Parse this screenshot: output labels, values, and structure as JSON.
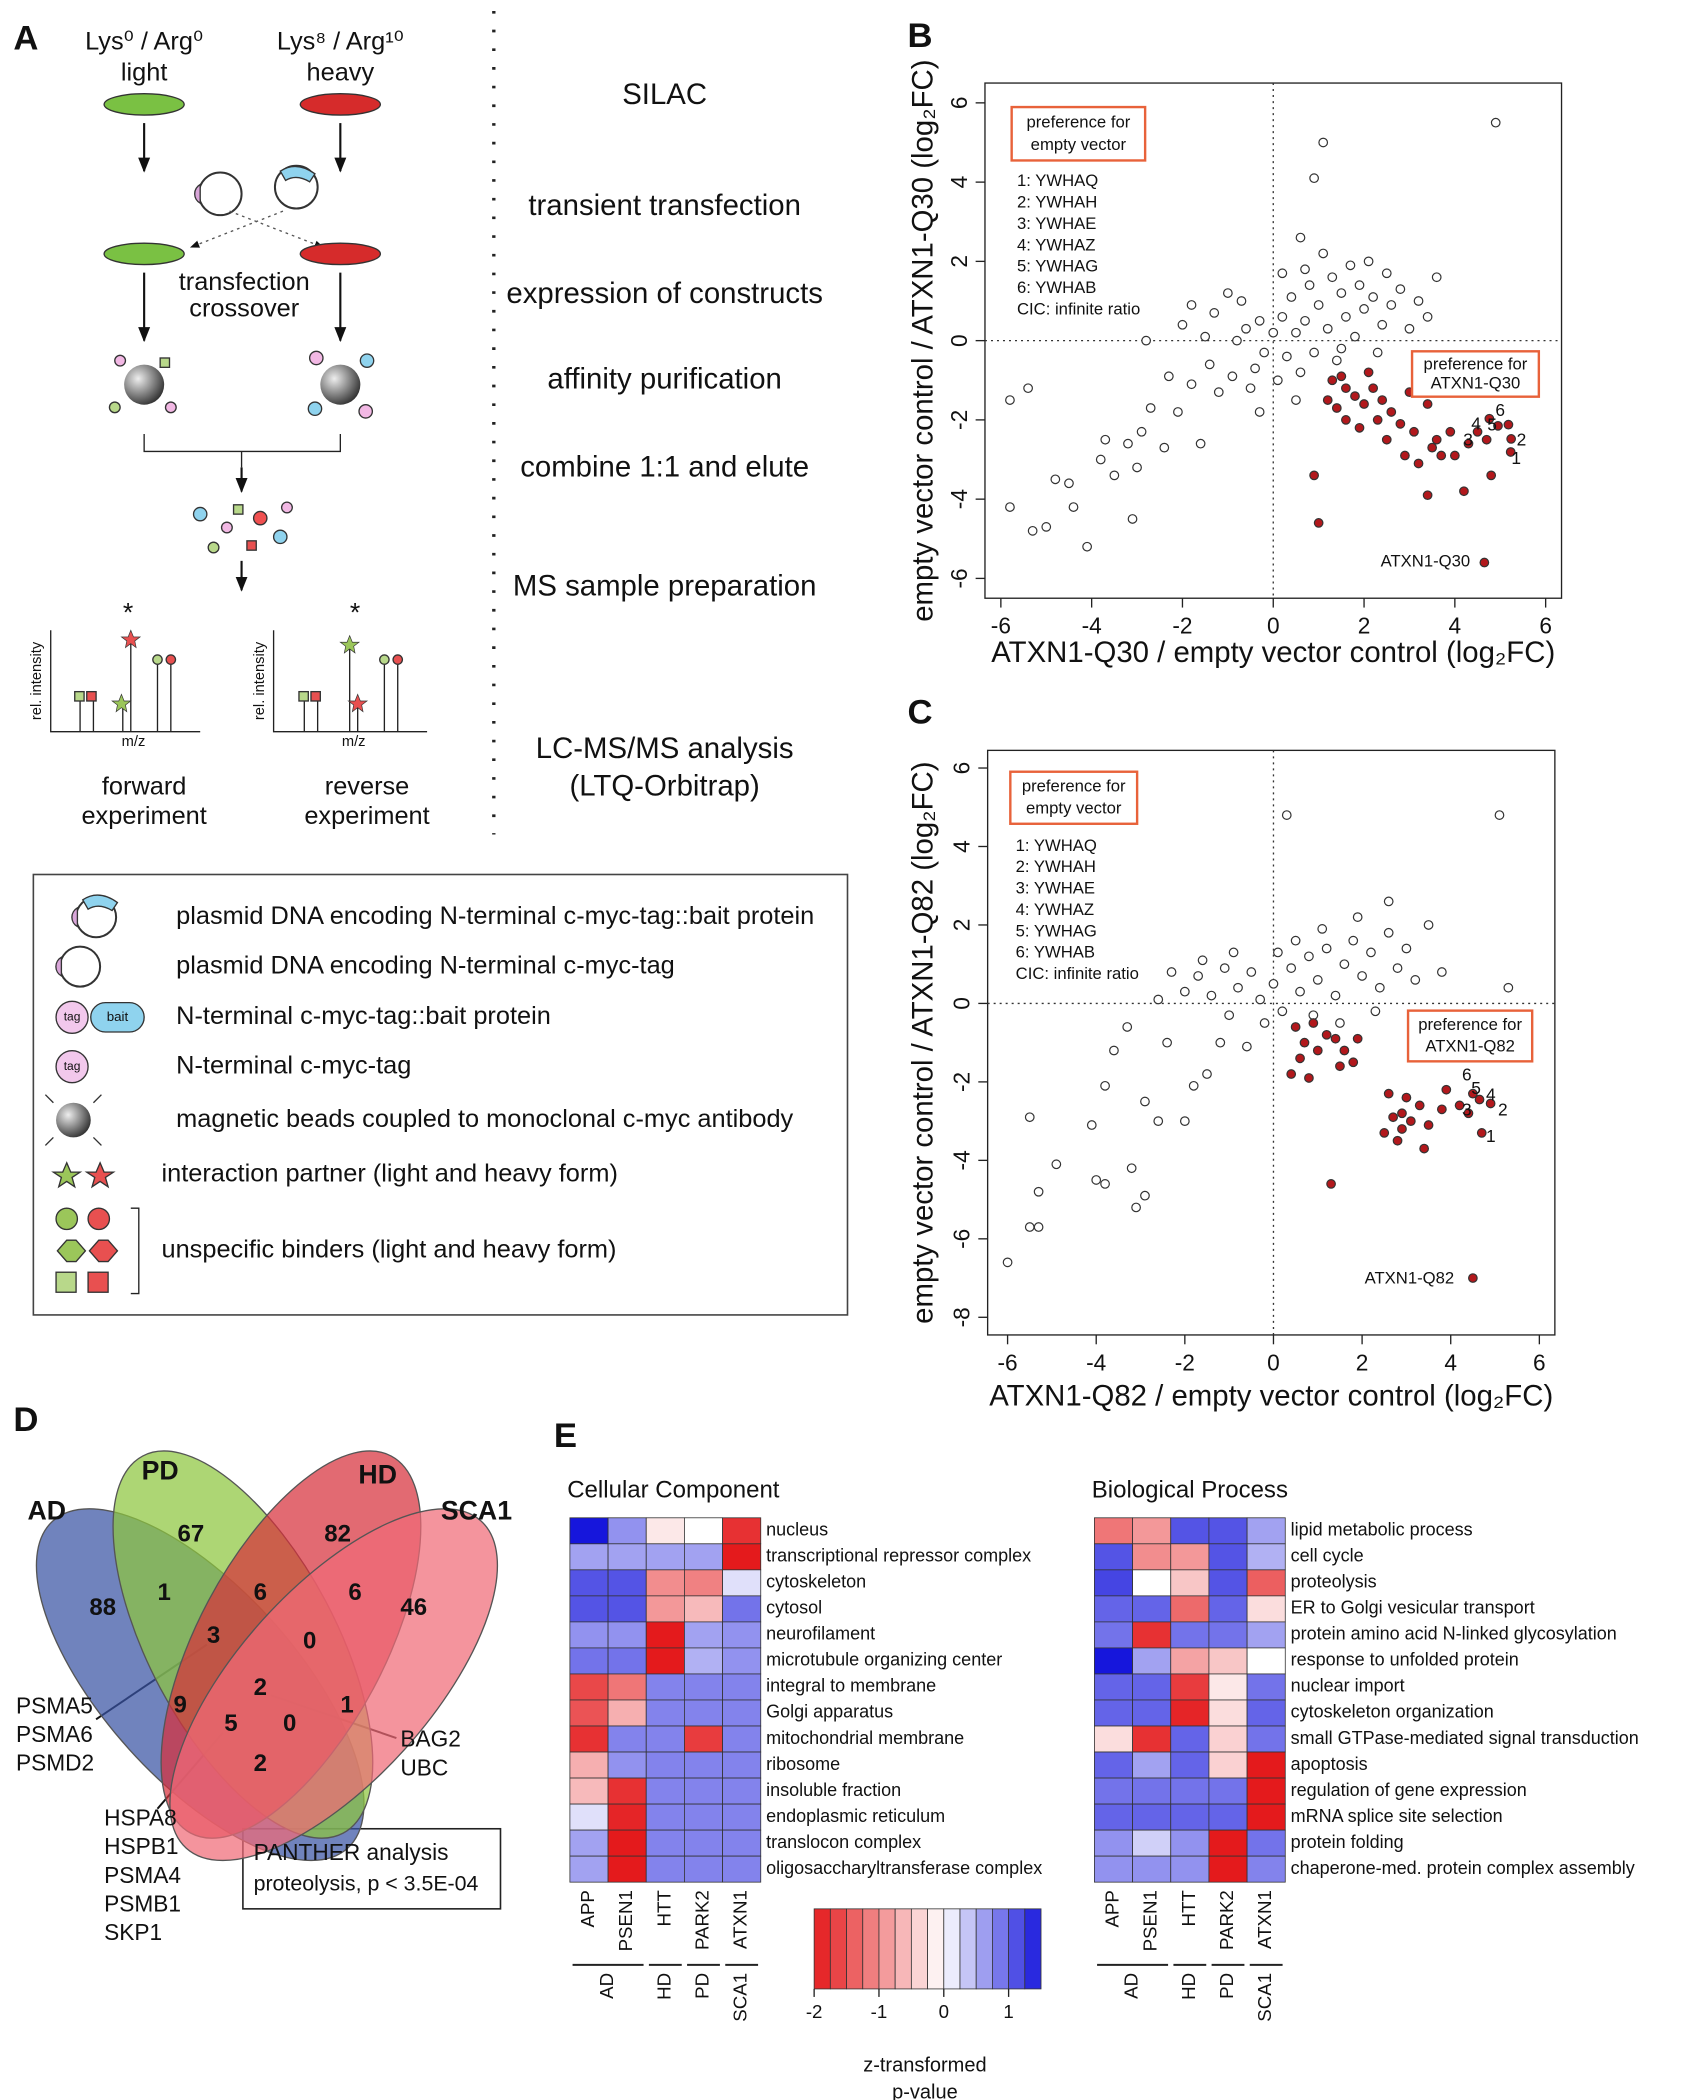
{
  "panel_a": {
    "label": "A",
    "light_label": "Lys⁰ / Arg⁰",
    "light": "light",
    "heavy_label": "Lys⁸ / Arg¹⁰",
    "heavy": "heavy",
    "crossover": [
      "transfection",
      "crossover"
    ],
    "y_axis": "rel. intensity",
    "x_axis": "m/z",
    "marker": "*",
    "forward": [
      "forward",
      "experiment"
    ],
    "reverse": [
      "reverse",
      "experiment"
    ],
    "steps": [
      "SILAC",
      "transient transfection",
      "expression of constructs",
      "affinity purification",
      "combine 1:1 and elute",
      "MS sample preparation",
      "LC-MS/MS analysis",
      "(LTQ-Orbitrap)"
    ],
    "legend": [
      "plasmid DNA encoding N-terminal c-myc-tag::bait protein",
      "plasmid DNA encoding N-terminal c-myc-tag",
      "N-terminal c-myc-tag::bait protein",
      "N-terminal c-myc-tag",
      "magnetic beads coupled to monoclonal c-myc antibody",
      "interaction partner (light and heavy form)",
      "unspecific binders (light and heavy form)"
    ],
    "tag": "tag",
    "bait": "bait"
  },
  "chart_data": [
    {
      "type": "scatter",
      "panel": "B",
      "x_label": "ATXN1-Q30 / empty vector control (log₂FC)",
      "y_label": "empty vector control / ATXN1-Q30 (log₂FC)",
      "xlim": [
        -6.35,
        6.35
      ],
      "ylim": [
        -6.5,
        6.5
      ],
      "xticks": [
        -6,
        -4,
        -2,
        0,
        2,
        4,
        6
      ],
      "yticks": [
        -6,
        -4,
        -2,
        0,
        2,
        4,
        6
      ],
      "left_box": [
        "preference for",
        "empty vector"
      ],
      "right_box": [
        "preference for",
        "ATXN1-Q30"
      ],
      "key": [
        "1: YWHAQ",
        "2: YWHAH",
        "3: YWHAE",
        "4: YWHAZ",
        "5: YWHAG",
        "6: YWHAB",
        "CIC: infinite ratio"
      ],
      "point_labels": [
        "6",
        "4",
        "5",
        "3",
        "2",
        "1"
      ],
      "bait_label": "ATXN1-Q30",
      "series": [
        {
          "color": "#ffffff",
          "x": [
            1.1,
            4.9,
            0.9,
            0.6,
            -5.8,
            -5.4,
            -5.8,
            -5.3,
            -5.0,
            -4.8,
            -4.5,
            -4.4,
            -4.1,
            -3.7,
            -3.8,
            -3.5,
            -3.2,
            -3.0,
            -3.1,
            -2.9,
            -2.7,
            -2.4,
            -2.1,
            -1.8,
            -1.6,
            -1.4,
            -1.2,
            -0.9,
            -0.5,
            -0.3,
            -2.8,
            -2.0,
            -1.8,
            -1.3,
            -1.0,
            -0.7,
            -0.6,
            -0.3,
            -0.2,
            0.0,
            0.2,
            0.3,
            0.4,
            0.5,
            0.6,
            0.7,
            0.8,
            0.9,
            1.0,
            1.2,
            1.3,
            1.4,
            1.5,
            1.6,
            1.7,
            1.8,
            1.9,
            2.0,
            2.1,
            2.2,
            2.4,
            2.5,
            2.6,
            2.8,
            3.0,
            3.2,
            3.3,
            3.6,
            3.4,
            -0.4,
            0.1,
            -1.5,
            -0.8,
            0.2,
            1.1,
            0.5,
            -2.3,
            2.3,
            1.5,
            0.7
          ],
          "values": [
            5.0,
            5.5,
            4.1,
            2.6,
            -1.5,
            -1.2,
            -4.2,
            -4.8,
            -4.7,
            -3.5,
            -3.6,
            -4.2,
            -5.2,
            -2.5,
            -3.0,
            -3.4,
            -2.6,
            -3.2,
            -4.5,
            -2.3,
            -1.7,
            -2.7,
            -1.8,
            -1.1,
            -2.6,
            -0.6,
            -1.3,
            -0.9,
            -1.2,
            -1.8,
            0.0,
            0.4,
            0.9,
            0.7,
            1.2,
            1.0,
            0.3,
            0.5,
            -0.3,
            0.2,
            0.6,
            -0.4,
            1.1,
            0.2,
            -0.8,
            0.5,
            1.4,
            -0.3,
            0.9,
            0.3,
            1.6,
            -0.5,
            1.2,
            0.6,
            1.9,
            0.1,
            1.4,
            0.8,
            2.0,
            1.1,
            0.4,
            1.7,
            0.9,
            1.3,
            0.3,
            1.0,
            -0.5,
            1.6,
            0.6,
            -0.7,
            -1.0,
            0.1,
            0.0,
            1.7,
            2.2,
            -1.5,
            -0.9,
            -0.3,
            -0.2,
            1.8
          ]
        },
        {
          "color": "#b2181c",
          "x": [
            1.3,
            1.5,
            1.2,
            1.4,
            1.8,
            2.0,
            1.6,
            1.9,
            2.2,
            2.4,
            2.3,
            2.6,
            2.8,
            2.5,
            3.0,
            3.1,
            2.9,
            3.4,
            3.5,
            3.6,
            3.9,
            4.0,
            4.3,
            4.5,
            3.2,
            3.7,
            4.8,
            4.2,
            3.4,
            0.9,
            1.0,
            1.6,
            2.1,
            4.76,
            4.95,
            5.18,
            5.24,
            5.23,
            4.7,
            4.65
          ],
          "values": [
            -1.0,
            -0.9,
            -1.5,
            -1.7,
            -1.4,
            -1.6,
            -2.0,
            -2.2,
            -1.2,
            -1.5,
            -2.0,
            -1.8,
            -2.1,
            -2.5,
            -1.3,
            -2.3,
            -2.9,
            -1.6,
            -2.7,
            -2.5,
            -2.3,
            -2.9,
            -2.6,
            -2.3,
            -3.1,
            -2.9,
            -3.4,
            -3.8,
            -3.9,
            -3.4,
            -4.6,
            -1.2,
            -0.8,
            -1.97,
            -2.15,
            -2.12,
            -2.48,
            -2.81,
            -2.5,
            -5.6
          ]
        }
      ]
    },
    {
      "type": "scatter",
      "panel": "C",
      "x_label": "ATXN1-Q82 / empty vector control (log₂FC)",
      "y_label": "empty vector control / ATXN1-Q82 (log₂FC)",
      "xlim": [
        -6.45,
        6.35
      ],
      "ylim": [
        -8.45,
        6.45
      ],
      "xticks": [
        -6,
        -4,
        -2,
        0,
        2,
        4,
        6
      ],
      "yticks": [
        -8,
        -6,
        -4,
        -2,
        0,
        2,
        4,
        6
      ],
      "left_box": [
        "preference for",
        "empty vector"
      ],
      "right_box": [
        "preference for",
        "ATXN1-Q82"
      ],
      "key": [
        "1: YWHAQ",
        "2: YWHAH",
        "3: YWHAE",
        "4: YWHAZ",
        "5: YWHAG",
        "6: YWHAB",
        "CIC: infinite ratio"
      ],
      "point_labels": [
        "6",
        "5",
        "4",
        "3",
        "2",
        "1"
      ],
      "bait_label": "ATXN1-Q82",
      "series": [
        {
          "color": "#ffffff",
          "x": [
            0.3,
            5.1,
            5.3,
            -6.0,
            -5.5,
            -5.3,
            -5.5,
            -5.3,
            -4.9,
            -4.1,
            -4.0,
            -3.8,
            -3.8,
            -3.6,
            -3.3,
            -3.1,
            -2.9,
            -3.2,
            -2.9,
            -2.6,
            -2.4,
            -2.0,
            -1.8,
            -1.5,
            -1.2,
            -0.6,
            -2.3,
            -2.0,
            -1.7,
            -1.4,
            -1.1,
            -0.8,
            -0.5,
            -0.3,
            0.0,
            0.2,
            0.4,
            0.6,
            0.8,
            1.0,
            1.2,
            1.4,
            1.6,
            1.8,
            2.0,
            2.2,
            2.4,
            2.6,
            2.8,
            3.0,
            3.2,
            3.5,
            2.6,
            1.9,
            0.9,
            -0.2,
            -1.0,
            0.5,
            1.5,
            3.8,
            -2.6,
            0.1,
            -1.6,
            2.3,
            1.1,
            -0.9
          ],
          "values": [
            4.8,
            4.8,
            0.4,
            -6.6,
            -5.7,
            -5.7,
            -2.9,
            -4.8,
            -4.1,
            -3.1,
            -4.5,
            -4.6,
            -2.1,
            -1.2,
            -0.6,
            -5.2,
            -4.9,
            -4.2,
            -2.5,
            -3.0,
            -1.0,
            -3.0,
            -2.1,
            -1.8,
            -1.0,
            -1.1,
            0.8,
            0.3,
            0.7,
            0.2,
            0.9,
            0.4,
            0.8,
            0.1,
            0.5,
            -0.2,
            0.9,
            0.3,
            1.2,
            0.6,
            1.4,
            0.2,
            1.0,
            1.6,
            0.7,
            1.3,
            0.4,
            1.8,
            0.9,
            1.4,
            0.6,
            2.0,
            2.6,
            2.2,
            -0.3,
            -0.5,
            -0.3,
            1.6,
            -0.5,
            0.8,
            0.1,
            1.3,
            1.1,
            -0.2,
            1.9,
            1.3
          ]
        },
        {
          "color": "#b2181c",
          "x": [
            0.5,
            0.7,
            0.9,
            1.0,
            1.2,
            0.6,
            1.4,
            1.6,
            1.8,
            1.9,
            0.4,
            2.6,
            2.7,
            2.9,
            3.1,
            3.3,
            3.5,
            3.0,
            2.8,
            3.8,
            3.4,
            2.5,
            4.2,
            4.5,
            4.65,
            4.9,
            4.4,
            4.7,
            3.9,
            1.3,
            4.5,
            1.5,
            0.8,
            2.9
          ],
          "values": [
            -0.6,
            -1.0,
            -0.5,
            -1.2,
            -0.8,
            -1.4,
            -0.9,
            -1.2,
            -1.5,
            -0.9,
            -1.8,
            -2.3,
            -2.9,
            -3.2,
            -3.0,
            -2.6,
            -3.1,
            -2.4,
            -3.5,
            -2.7,
            -3.7,
            -3.3,
            -2.6,
            -2.3,
            -2.45,
            -2.55,
            -2.8,
            -3.3,
            -2.2,
            -4.6,
            -7.0,
            -1.6,
            -1.9,
            -2.8
          ]
        }
      ]
    }
  ],
  "venn": {
    "label": "D",
    "sets": [
      {
        "name": "AD",
        "color": "#3953a4"
      },
      {
        "name": "PD",
        "color": "#8dc63f"
      },
      {
        "name": "HD",
        "color": "#d7313c"
      },
      {
        "name": "SCA1",
        "color": "#f06b77"
      }
    ],
    "counts": [
      88,
      67,
      82,
      46,
      1,
      6,
      6,
      3,
      0,
      9,
      2,
      1,
      5,
      0,
      2
    ],
    "gene_lists": [
      [
        {
          "name": "PSMA5",
          "color": "#2233cc"
        },
        {
          "name": "PSMA6",
          "color": "#2233cc"
        },
        {
          "name": "PSMD2",
          "color": "#2233cc"
        }
      ],
      [
        {
          "name": "BAG2",
          "color": "#e0201e"
        },
        {
          "name": "UBC",
          "color": "#2233cc"
        }
      ],
      [
        {
          "name": "HSPA8",
          "color": "#e0201e"
        },
        {
          "name": "HSPB1",
          "color": "#e0201e"
        },
        {
          "name": "PSMA4",
          "color": "#2233cc"
        },
        {
          "name": "PSMB1",
          "color": "#2233cc"
        },
        {
          "name": "SKP1",
          "color": "#2233cc"
        }
      ]
    ],
    "panther": {
      "title": "PANTHER analysis",
      "result": "proteolysis, p < 3.5E-04",
      "color": "#2233cc"
    }
  },
  "heatmaps": {
    "label": "E",
    "columns": [
      "APP",
      "PSEN1",
      "HTT",
      "PARK2",
      "ATXN1"
    ],
    "groups": [
      "AD",
      "HD",
      "PD",
      "SCA1"
    ],
    "colorbar": {
      "lim": [
        -2,
        1.5
      ],
      "ticks": [
        -2,
        -1,
        0,
        1
      ],
      "title": [
        "z-transformed",
        "p-value"
      ]
    },
    "panels": [
      {
        "title": "Cellular Component",
        "rows": [
          "nucleus",
          "transcriptional repressor complex",
          "cytoskeleton",
          "cytosol",
          "neurofilament",
          "microtubule organizing center",
          "integral to membrane",
          "Golgi apparatus",
          "mitochondrial membrane",
          "ribosome",
          "insoluble fraction",
          "endoplasmic reticulum",
          "translocon complex",
          "oligosaccharyltransferase complex"
        ],
        "values": [
          [
            1.5,
            0.7,
            -0.2,
            0,
            -1.8
          ],
          [
            0.6,
            0.6,
            0.6,
            0.6,
            -2
          ],
          [
            1.1,
            1.1,
            -1.0,
            -1.1,
            0.2
          ],
          [
            1.1,
            1.1,
            -0.9,
            -0.6,
            0.9
          ],
          [
            0.7,
            0.7,
            -2,
            0.6,
            0.7
          ],
          [
            0.9,
            0.9,
            -2,
            0.5,
            0.7
          ],
          [
            -1.6,
            -1.2,
            0.8,
            0.8,
            0.8
          ],
          [
            -1.5,
            -0.7,
            0.8,
            0.8,
            0.8
          ],
          [
            -1.8,
            0.8,
            0.8,
            -1.7,
            0.8
          ],
          [
            -0.7,
            0.7,
            0.8,
            0.8,
            0.8
          ],
          [
            -0.6,
            -1.8,
            0.8,
            0.8,
            0.8
          ],
          [
            0.2,
            -1.9,
            0.8,
            0.8,
            0.8
          ],
          [
            0.6,
            -2,
            0.8,
            0.8,
            0.8
          ],
          [
            0.6,
            -2,
            0.8,
            0.8,
            0.8
          ]
        ]
      },
      {
        "title": "Biological Process",
        "rows": [
          "lipid metabolic process",
          "cell cycle",
          "proteolysis",
          "ER to Golgi vesicular transport",
          "protein amino acid N-linked glycosylation",
          "response to unfolded protein",
          "nuclear import",
          "cytoskeleton organization",
          "small GTPase-mediated signal transduction",
          "apoptosis",
          "regulation of gene expression",
          "mRNA splice site selection",
          "protein folding",
          "chaperone-med. protein complex assembly"
        ],
        "values": [
          [
            -1.2,
            -0.9,
            1.1,
            1.1,
            0.6
          ],
          [
            1.1,
            -1.0,
            -0.9,
            1.1,
            0.5
          ],
          [
            1.2,
            0,
            -0.5,
            1.1,
            -1.4
          ],
          [
            1.0,
            1.0,
            -1.3,
            1.0,
            -0.3
          ],
          [
            0.9,
            -1.8,
            0.9,
            0.9,
            0.6
          ],
          [
            1.6,
            0.6,
            -0.8,
            -0.5,
            0
          ],
          [
            1.0,
            1.0,
            -1.7,
            -0.2,
            0.9
          ],
          [
            1.0,
            1.0,
            -1.9,
            -0.3,
            1.0
          ],
          [
            -0.3,
            -1.8,
            1.0,
            -0.4,
            0.9
          ],
          [
            1.0,
            0.6,
            1.0,
            -0.4,
            -2
          ],
          [
            0.9,
            0.9,
            0.9,
            0.9,
            -2
          ],
          [
            1.0,
            1.0,
            1.0,
            1.0,
            -2
          ],
          [
            0.7,
            0.3,
            0.7,
            -2,
            0.9
          ],
          [
            0.7,
            0.7,
            0.7,
            -2,
            0.8
          ]
        ]
      }
    ]
  }
}
